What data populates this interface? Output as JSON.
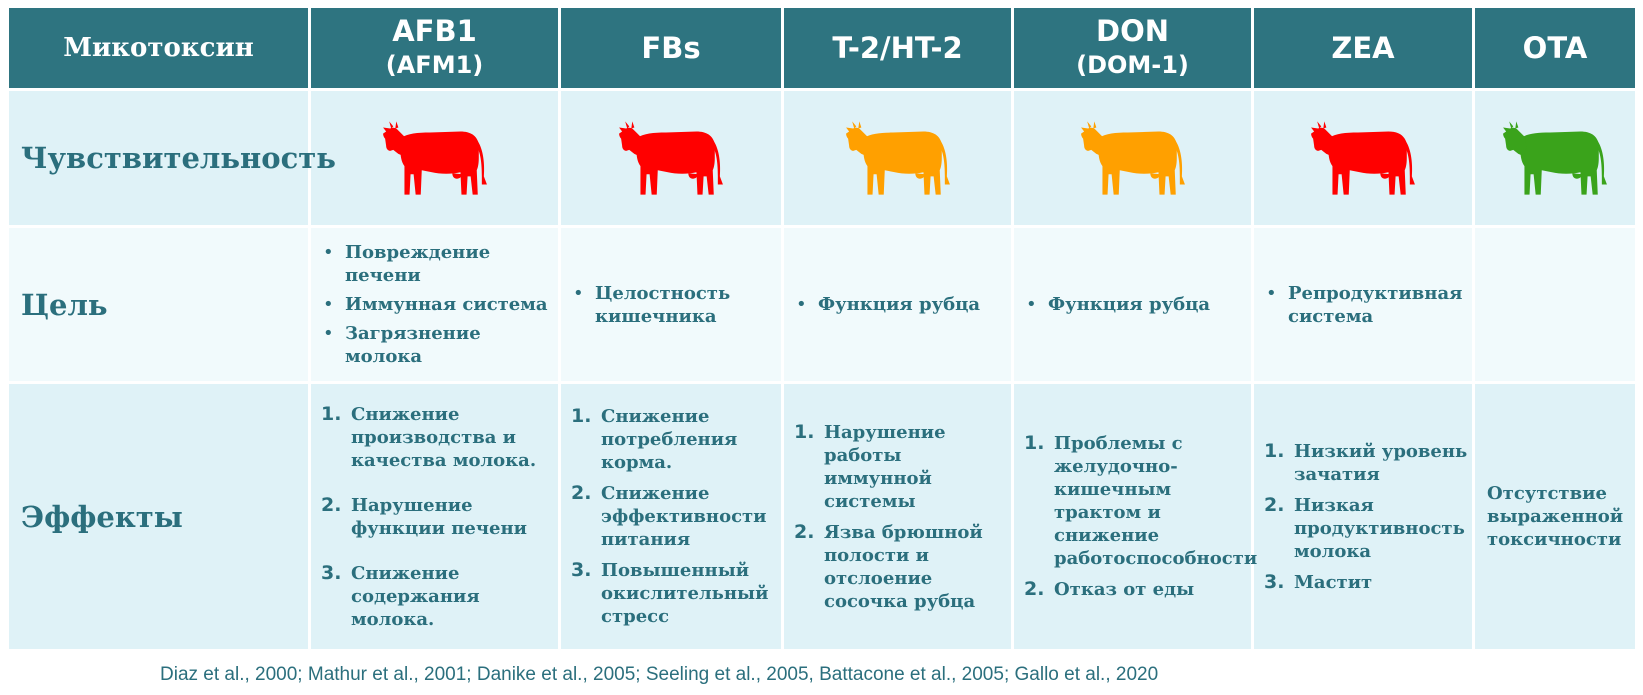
{
  "header": {
    "first": "Микотоксин",
    "toxins": [
      {
        "name": "AFB1",
        "sub": "(AFM1)"
      },
      {
        "name": "FBs",
        "sub": ""
      },
      {
        "name": "T-2/HT-2",
        "sub": ""
      },
      {
        "name": "DON",
        "sub": "(DOM-1)"
      },
      {
        "name": "ZEA",
        "sub": ""
      },
      {
        "name": "OTA",
        "sub": ""
      }
    ]
  },
  "rows": {
    "sensitivity": {
      "label": "Чувствительность",
      "icons": [
        {
          "icon": "cow-icon",
          "color": "#ff0000",
          "level": "high"
        },
        {
          "icon": "cow-icon",
          "color": "#ff0000",
          "level": "high"
        },
        {
          "icon": "cow-icon",
          "color": "#ffa000",
          "level": "medium"
        },
        {
          "icon": "cow-icon",
          "color": "#ffa000",
          "level": "medium"
        },
        {
          "icon": "cow-icon",
          "color": "#ff0000",
          "level": "high"
        },
        {
          "icon": "cow-icon",
          "color": "#3aa31b",
          "level": "low"
        }
      ]
    },
    "target": {
      "label": "Цель",
      "cells": [
        [
          "Повреждение печени",
          "Иммунная система",
          "Загрязнение молока"
        ],
        [
          "Целостность кишечника"
        ],
        [
          "Функция рубца"
        ],
        [
          "Функция рубца"
        ],
        [
          "Репродуктивная система"
        ],
        []
      ]
    },
    "effects": {
      "label": "Эффекты",
      "cells": [
        [
          "Снижение производства и качества молока.",
          "Нарушение функции печени",
          "Снижение содержания молока."
        ],
        [
          "Снижение потребления корма.",
          "Снижение эффективности питания",
          "Повышенный окислительный стресс"
        ],
        [
          "Нарушение работы иммунной системы",
          "Язва брюшной полости и отслоение сосочка рубца"
        ],
        [
          "Проблемы с желудочно-кишечным трактом и снижение работоспособности",
          "Отказ от еды"
        ],
        [
          "Низкий уровень зачатия",
          "Низкая продуктивность молока",
          "Мастит"
        ]
      ],
      "ota_text": "Отсутствие выраженной токсичности"
    }
  },
  "citation": "Diaz et al., 2000; Mathur et al., 2001; Danike et al., 2005; Seeling et al., 2005, Battacone et al., 2005; Gallo et al., 2020",
  "colors": {
    "header_bg": "#2e7480",
    "row_bg": "#dff2f7",
    "row_bg_alt": "#f1fafc",
    "text": "#2b6f7d"
  }
}
